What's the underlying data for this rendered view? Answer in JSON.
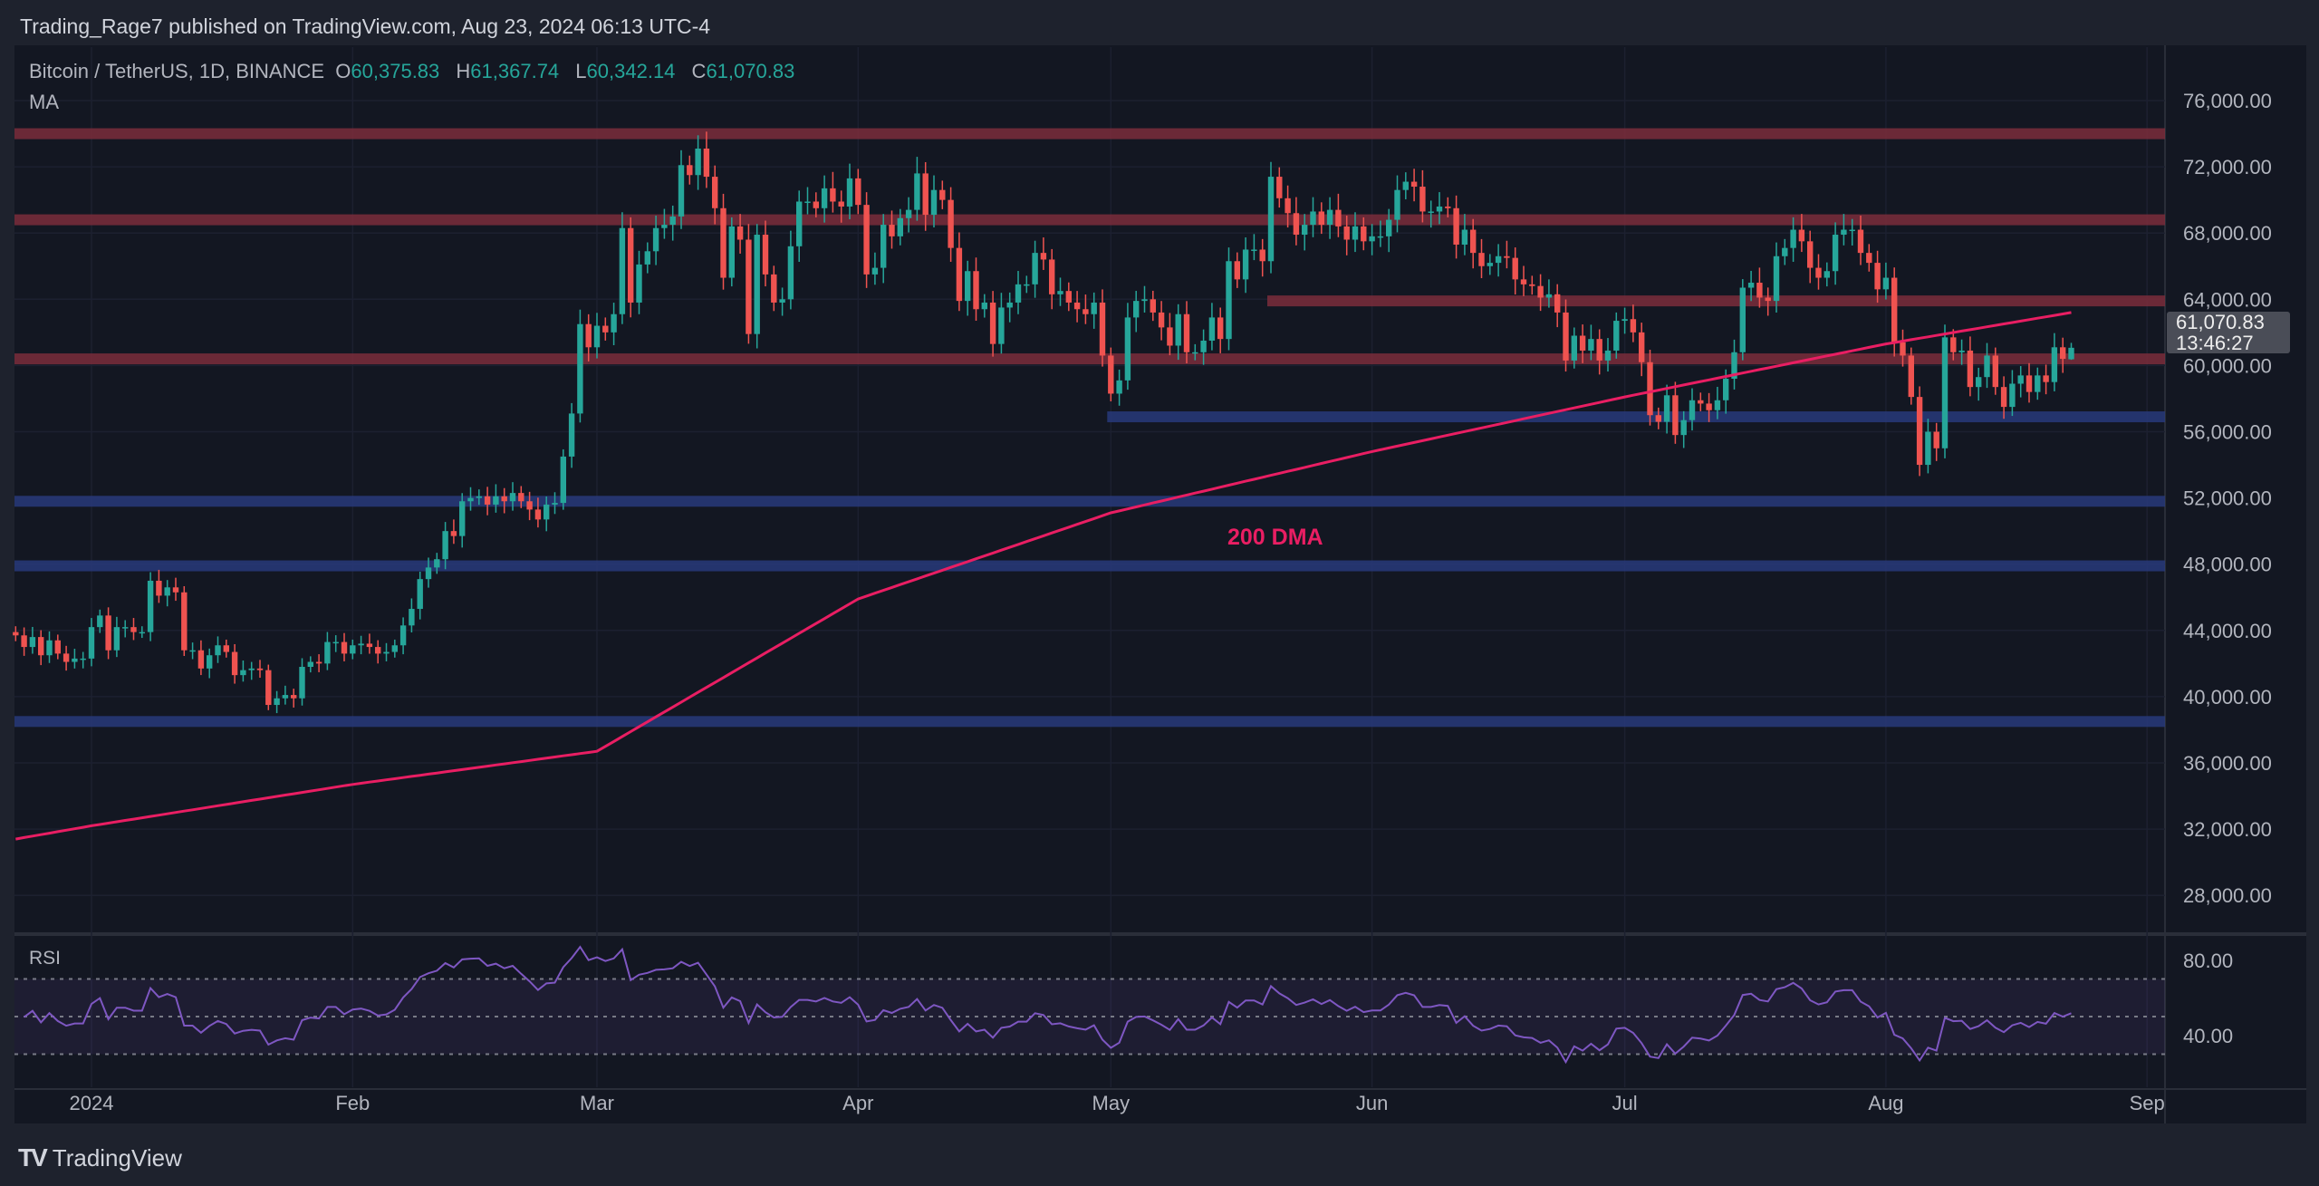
{
  "header": {
    "publisher": "Trading_Rage7 published on TradingView.com, Aug 23, 2024 06:13 UTC-4"
  },
  "legend": {
    "symbol": "Bitcoin / TetherUS, 1D, BINANCE",
    "o_label": "O",
    "o": "60,375.83",
    "h_label": "H",
    "h": "61,367.74",
    "l_label": "L",
    "l": "60,342.14",
    "c_label": "C",
    "c": "61,070.83",
    "ma": "MA"
  },
  "price_tag": {
    "price": "61,070.83",
    "countdown": "13:46:27"
  },
  "rsi_label": "RSI",
  "footer": {
    "logo": "TV",
    "brand": "TradingView"
  },
  "colors": {
    "up": "#26a69a",
    "down": "#ef5350",
    "ma": "#e91e63",
    "resistance": "#7b2d3b",
    "support": "#283a7a",
    "rsi": "#7e57c2"
  },
  "chart_data": {
    "type": "candlestick",
    "title": "Bitcoin / TetherUS, 1D, BINANCE",
    "start_date": "2023-12-23",
    "y_ticks": [
      "76,000.00",
      "72,000.00",
      "68,000.00",
      "64,000.00",
      "60,000.00",
      "56,000.00",
      "52,000.00",
      "48,000.00",
      "44,000.00",
      "40,000.00",
      "36,000.00",
      "32,000.00",
      "28,000.00"
    ],
    "ylim": [
      28000,
      76000
    ],
    "x_labels": [
      {
        "label": "2024",
        "day": 0
      },
      {
        "label": "Feb",
        "day": 31
      },
      {
        "label": "Mar",
        "day": 60
      },
      {
        "label": "Apr",
        "day": 91
      },
      {
        "label": "May",
        "day": 121
      },
      {
        "label": "Jun",
        "day": 152
      },
      {
        "label": "Jul",
        "day": 182
      },
      {
        "label": "Aug",
        "day": 213
      },
      {
        "label": "Sep",
        "day": 244
      }
    ],
    "first_open": 43.9,
    "closes_k": [
      43.7,
      43.0,
      43.6,
      42.5,
      43.4,
      42.6,
      42.1,
      42.3,
      42.3,
      44.2,
      44.9,
      42.8,
      44.2,
      44.2,
      43.9,
      43.9,
      47.0,
      46.1,
      46.6,
      46.3,
      42.8,
      42.8,
      41.7,
      42.5,
      43.1,
      42.7,
      41.3,
      41.6,
      41.7,
      41.6,
      39.5,
      39.9,
      40.1,
      39.9,
      41.8,
      42.1,
      42.0,
      43.3,
      43.3,
      42.6,
      43.1,
      43.2,
      43.0,
      42.6,
      42.7,
      43.1,
      44.3,
      45.3,
      47.1,
      47.8,
      48.3,
      50.0,
      49.7,
      51.8,
      52.0,
      52.1,
      51.6,
      52.1,
      51.8,
      52.3,
      51.8,
      51.3,
      50.7,
      51.6,
      51.7,
      54.5,
      57.1,
      62.5,
      61.1,
      62.4,
      62.0,
      63.1,
      68.3,
      63.8,
      66.1,
      66.9,
      68.3,
      68.5,
      69.0,
      72.1,
      71.5,
      73.1,
      71.4,
      69.5,
      65.3,
      68.4,
      67.6,
      61.9,
      67.9,
      65.5,
      63.8,
      64.0,
      67.2,
      69.9,
      69.9,
      69.5,
      70.7,
      69.9,
      69.6,
      71.3,
      69.7,
      65.5,
      65.9,
      68.5,
      67.8,
      68.9,
      69.4,
      71.6,
      69.1,
      70.6,
      70.0,
      67.1,
      63.9,
      65.7,
      63.4,
      63.8,
      61.3,
      63.5,
      63.8,
      64.9,
      64.9,
      66.8,
      66.4,
      64.3,
      64.5,
      63.8,
      63.4,
      63.1,
      63.8,
      60.6,
      58.3,
      59.1,
      62.9,
      63.9,
      64.0,
      63.2,
      62.3,
      61.2,
      63.1,
      60.8,
      60.8,
      61.5,
      62.9,
      61.6,
      66.3,
      65.2,
      67.0,
      67.0,
      66.3,
      71.4,
      70.1,
      69.2,
      67.9,
      68.5,
      69.3,
      68.5,
      69.4,
      68.4,
      67.6,
      68.4,
      67.5,
      67.8,
      67.8,
      68.8,
      70.6,
      71.1,
      70.8,
      69.3,
      69.3,
      69.6,
      69.5,
      67.3,
      68.2,
      66.8,
      66.0,
      66.2,
      66.6,
      66.5,
      65.2,
      64.9,
      64.8,
      64.1,
      64.3,
      63.2,
      60.3,
      61.8,
      60.9,
      61.6,
      60.3,
      60.9,
      62.7,
      62.8,
      62.0,
      60.2,
      57.0,
      56.6,
      58.2,
      55.8,
      56.7,
      57.9,
      57.7,
      57.3,
      57.9,
      59.2,
      60.8,
      64.7,
      65.0,
      64.1,
      63.9,
      66.6,
      67.1,
      68.2,
      67.5,
      65.9,
      65.3,
      65.7,
      67.9,
      68.2,
      68.2,
      66.8,
      66.2,
      64.6,
      65.3,
      61.4,
      60.6,
      58.1,
      54.0,
      56.0,
      55.0,
      61.7,
      60.8,
      60.9,
      58.7,
      59.3,
      60.6,
      58.7,
      57.5,
      58.9,
      59.4,
      58.4,
      59.4,
      59.0,
      61.1,
      60.4,
      61.07
    ],
    "ma200": {
      "name": "200 DMA",
      "points": [
        [
          -9,
          31.4
        ],
        [
          0,
          32.2
        ],
        [
          31,
          34.7
        ],
        [
          60,
          36.7
        ],
        [
          91,
          45.9
        ],
        [
          121,
          51.1
        ],
        [
          152,
          54.8
        ],
        [
          182,
          58.1
        ],
        [
          213,
          61.3
        ],
        [
          235,
          63.2
        ]
      ]
    },
    "zones": [
      {
        "kind": "resistance",
        "price": 74000,
        "from_day": -9
      },
      {
        "kind": "resistance",
        "price": 68800,
        "from_day": -9
      },
      {
        "kind": "resistance",
        "price": 63900,
        "from_day": 140
      },
      {
        "kind": "resistance",
        "price": 60400,
        "from_day": -9
      },
      {
        "kind": "support",
        "price": 56900,
        "from_day": 121
      },
      {
        "kind": "support",
        "price": 51800,
        "from_day": -9
      },
      {
        "kind": "support",
        "price": 47900,
        "from_day": -9
      },
      {
        "kind": "support",
        "price": 38500,
        "from_day": -9
      }
    ],
    "rsi": {
      "period": 14,
      "levels": [
        70,
        50,
        30
      ],
      "ticks": [
        "80.00",
        "40.00"
      ]
    }
  }
}
